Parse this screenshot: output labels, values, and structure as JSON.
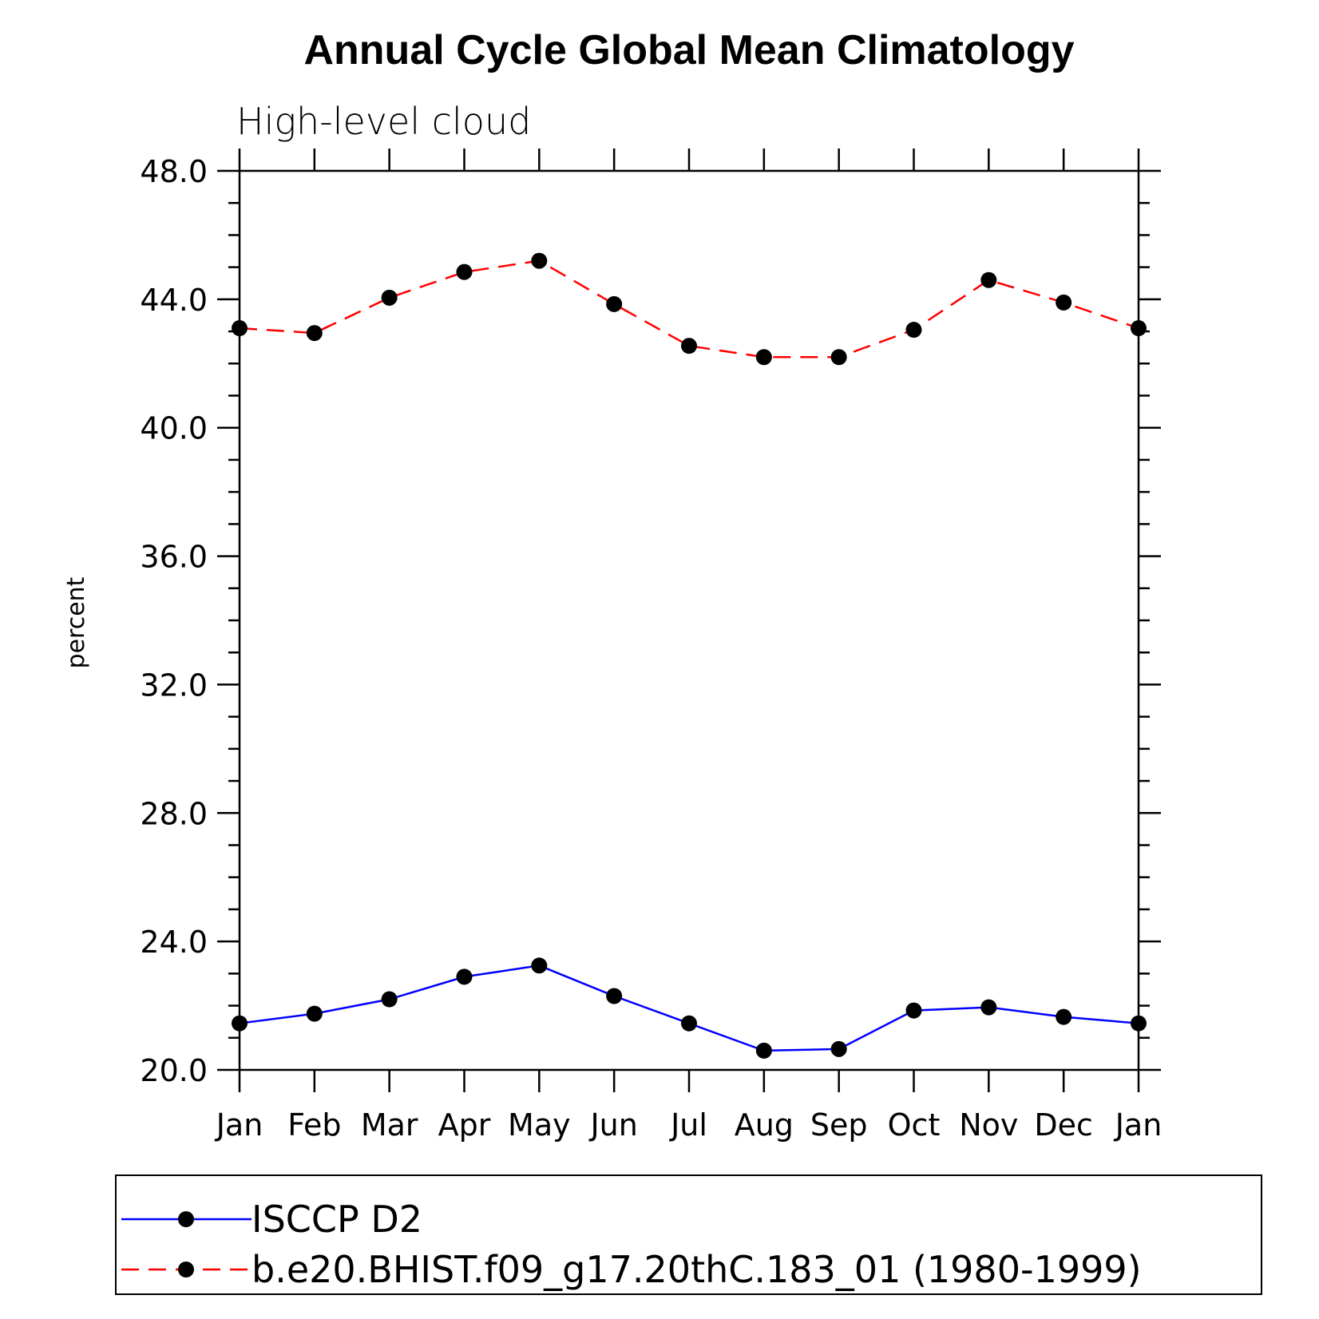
{
  "chart_data": {
    "type": "line",
    "title": "Annual Cycle Global Mean Climatology",
    "subtitle": "High-level cloud",
    "ylabel": "percent",
    "xlabel": "",
    "categories": [
      "Jan",
      "Feb",
      "Mar",
      "Apr",
      "May",
      "Jun",
      "Jul",
      "Aug",
      "Sep",
      "Oct",
      "Nov",
      "Dec",
      "Jan"
    ],
    "ylim": [
      20.0,
      48.0
    ],
    "ytick_labels": [
      "20.0",
      "24.0",
      "28.0",
      "32.0",
      "36.0",
      "40.0",
      "44.0",
      "48.0"
    ],
    "yticks": [
      20,
      24,
      28,
      32,
      36,
      40,
      44,
      48
    ],
    "y_minor_step": 1,
    "series": [
      {
        "name": "ISCCP D2",
        "color": "#0000ff",
        "line_style": "solid",
        "marker": "filled-circle",
        "values": [
          21.45,
          21.75,
          22.2,
          22.9,
          23.25,
          22.3,
          21.45,
          20.6,
          20.65,
          21.85,
          21.95,
          21.65,
          21.45
        ]
      },
      {
        "name": "b.e20.BHIST.f09_g17.20thC.183_01 (1980-1999)",
        "color": "#ff0000",
        "line_style": "dashed",
        "marker": "filled-circle",
        "values": [
          43.1,
          42.95,
          44.05,
          44.85,
          45.2,
          43.85,
          42.55,
          42.2,
          42.2,
          43.05,
          44.6,
          43.9,
          43.1
        ]
      }
    ],
    "legend": "bottom",
    "grid": false
  }
}
